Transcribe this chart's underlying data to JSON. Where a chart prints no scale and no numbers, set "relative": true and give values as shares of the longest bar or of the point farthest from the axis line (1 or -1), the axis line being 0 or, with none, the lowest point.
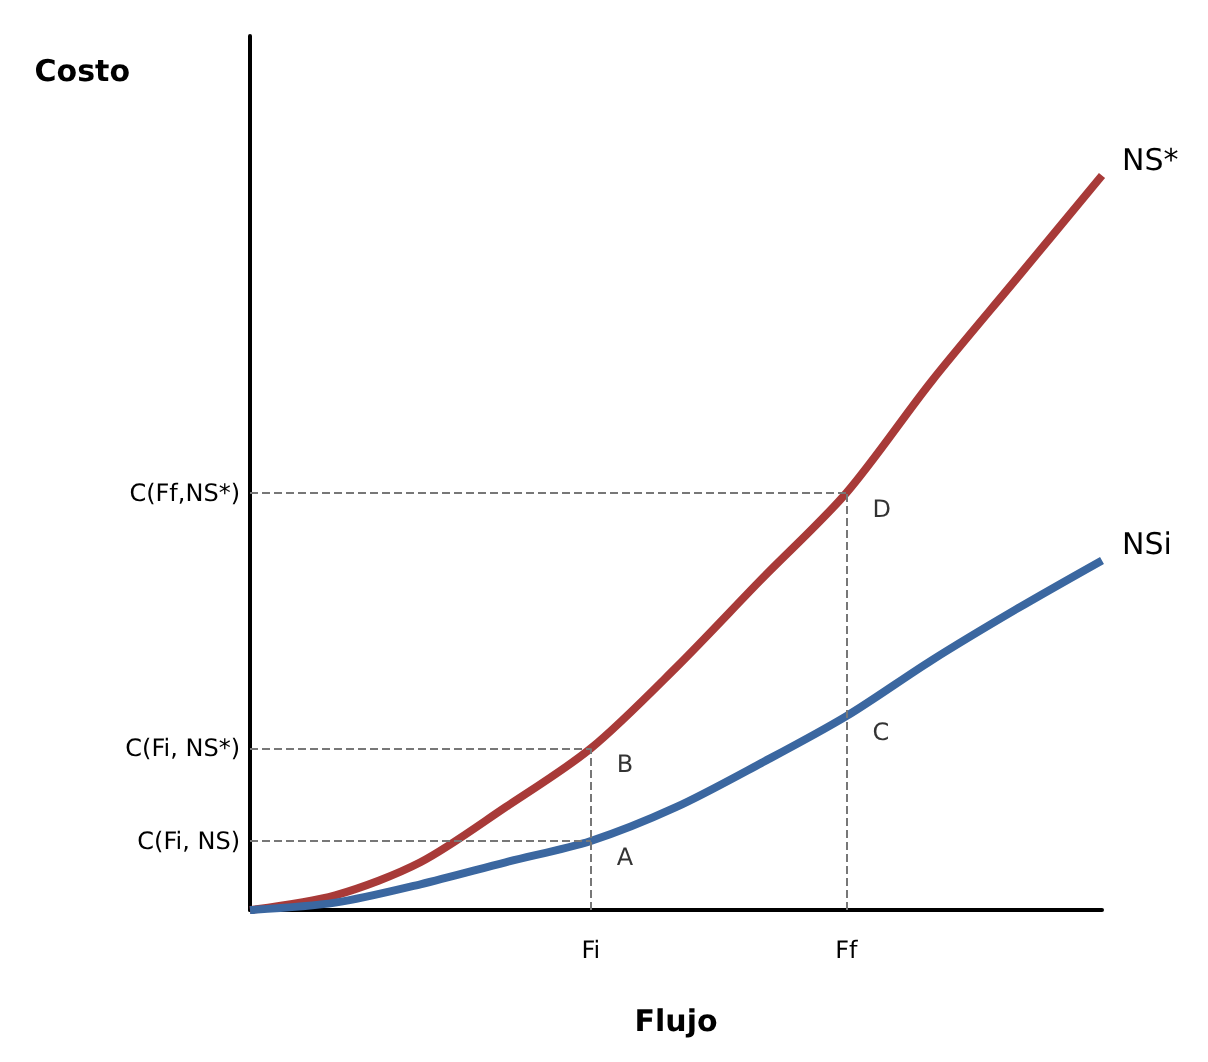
{
  "chart_data": {
    "type": "line",
    "relative": true,
    "ylabel": "Costo",
    "xlabel": "Flujo",
    "categories": [
      null,
      null,
      null,
      null,
      "Fi",
      null,
      null,
      "Ff",
      null,
      null,
      null
    ],
    "series": [
      {
        "name": "NS*",
        "color": "#a83a38",
        "values": [
          0,
          0.02,
          0.065,
          0.14,
          0.22,
          0.33,
          0.45,
          0.568,
          0.72,
          0.86,
          1
        ]
      },
      {
        "name": "NSi",
        "color": "#3b67a0",
        "values": [
          0,
          0.01,
          0.035,
          0.065,
          0.094,
          0.14,
          0.2,
          0.264,
          0.34,
          0.41,
          0.476
        ]
      }
    ],
    "ref_lines": [
      {
        "axis": "y",
        "value": 0.094,
        "label": "C(Fi, NS)"
      },
      {
        "axis": "y",
        "value": 0.22,
        "label": "C(Fi, NS*)"
      },
      {
        "axis": "y",
        "value": 0.568,
        "label": "C(Ff,NS*)"
      },
      {
        "axis": "x",
        "value": "Fi"
      },
      {
        "axis": "x",
        "value": "Ff"
      }
    ],
    "annotations": [
      {
        "text": "A",
        "x": "Fi",
        "y": 0.094
      },
      {
        "text": "B",
        "x": "Fi",
        "y": 0.22
      },
      {
        "text": "C",
        "x": "Ff",
        "y": 0.264
      },
      {
        "text": "D",
        "x": "Ff",
        "y": 0.568
      }
    ],
    "grid": false,
    "legend": false,
    "marker": "none",
    "line_style": "solid"
  }
}
